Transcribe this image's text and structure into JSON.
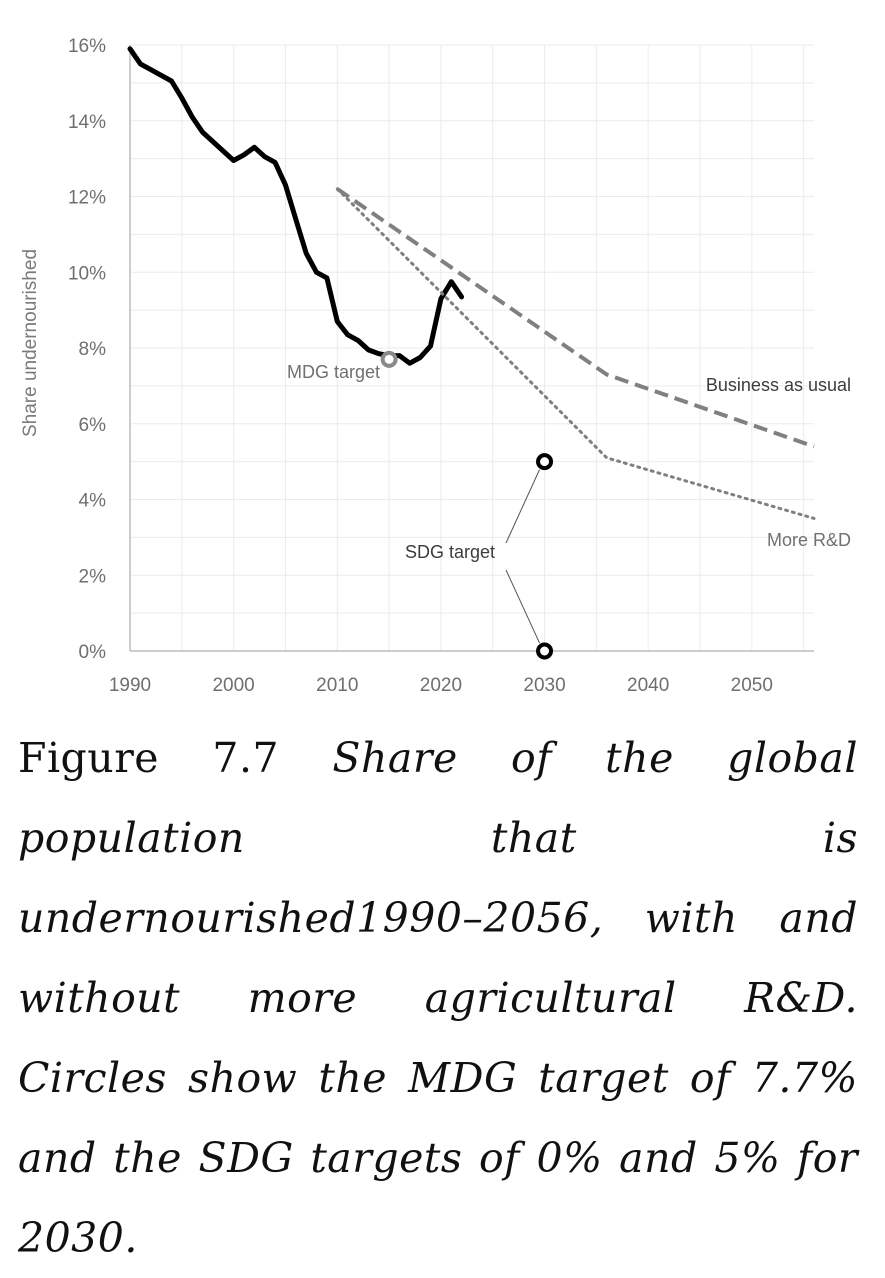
{
  "chart_data": {
    "type": "line",
    "ylabel": "Share undernourished",
    "xlim": [
      1990,
      2056
    ],
    "ylim": [
      0,
      16
    ],
    "x_ticks": [
      "1990",
      "2000",
      "2010",
      "2020",
      "2030",
      "2040",
      "2050"
    ],
    "y_ticks": [
      "0%",
      "2%",
      "4%",
      "6%",
      "8%",
      "10%",
      "12%",
      "14%",
      "16%"
    ],
    "grid": true,
    "series": [
      {
        "style": "solid",
        "color": "#000000",
        "points": [
          [
            1990,
            15.9
          ],
          [
            1991,
            15.5
          ],
          [
            1992,
            15.35
          ],
          [
            1993,
            15.2
          ],
          [
            1994,
            15.05
          ],
          [
            1995,
            14.6
          ],
          [
            1996,
            14.1
          ],
          [
            1997,
            13.7
          ],
          [
            1998,
            13.45
          ],
          [
            1999,
            13.2
          ],
          [
            2000,
            12.95
          ],
          [
            2001,
            13.1
          ],
          [
            2002,
            13.3
          ],
          [
            2003,
            13.05
          ],
          [
            2004,
            12.9
          ],
          [
            2005,
            12.3
          ],
          [
            2006,
            11.4
          ],
          [
            2007,
            10.5
          ],
          [
            2008,
            10.0
          ],
          [
            2009,
            9.85
          ],
          [
            2010,
            8.7
          ],
          [
            2011,
            8.35
          ],
          [
            2012,
            8.2
          ],
          [
            2013,
            7.95
          ],
          [
            2014,
            7.85
          ],
          [
            2015,
            7.8
          ],
          [
            2016,
            7.8
          ],
          [
            2017,
            7.6
          ],
          [
            2018,
            7.75
          ],
          [
            2019,
            8.05
          ],
          [
            2020,
            9.3
          ],
          [
            2021,
            9.75
          ],
          [
            2022,
            9.35
          ]
        ]
      },
      {
        "name": "Business as usual",
        "style": "dashed",
        "color": "#808080",
        "points": [
          [
            2010,
            12.2
          ],
          [
            2036,
            7.3
          ],
          [
            2056,
            5.4
          ]
        ]
      },
      {
        "name": "More R&D",
        "style": "dotted",
        "color": "#808080",
        "points": [
          [
            2010,
            12.2
          ],
          [
            2036,
            5.1
          ],
          [
            2056,
            3.5
          ]
        ]
      }
    ],
    "markers": [
      {
        "label": "MDG target",
        "x": 2015,
        "y": 7.7,
        "color": "#8a8a8a"
      },
      {
        "label": "SDG target",
        "x": 2030,
        "y": 5,
        "color": "#000000"
      },
      {
        "label": "SDG target",
        "x": 2030,
        "y": 0,
        "color": "#000000"
      }
    ],
    "annotations": {
      "mdg": "MDG target",
      "sdg": "SDG target",
      "bau": "Business as usual",
      "rnd": "More R&D"
    }
  },
  "caption": {
    "figure_label": "Figure 7.7",
    "text": "Share of the global population that is undernourished1990–2056, with and without more agricultural R&D. Circles show the MDG target of 7.7% and the SDG targets of 0% and 5% for 2030."
  }
}
